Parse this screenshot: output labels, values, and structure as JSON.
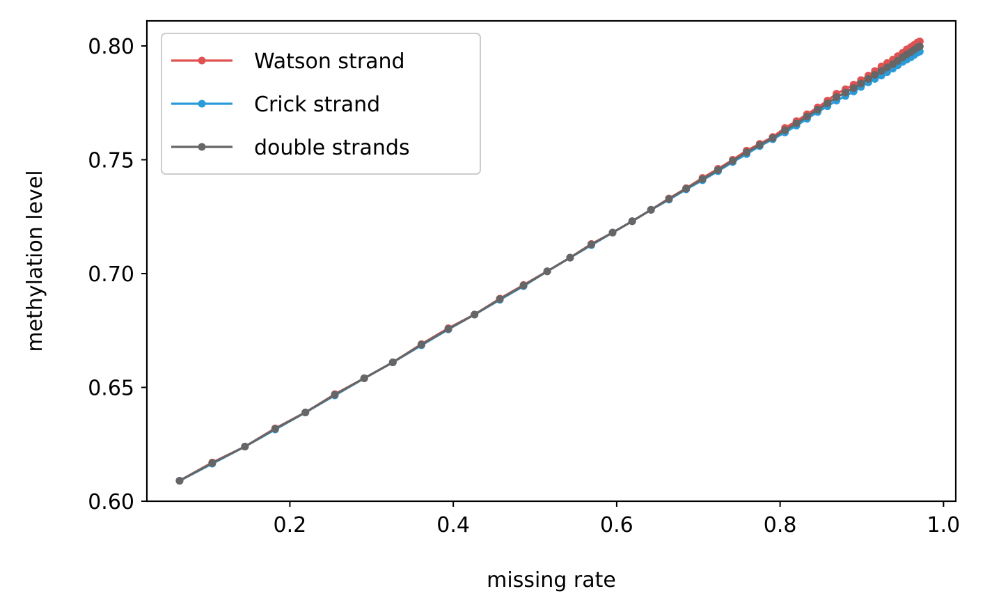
{
  "chart_data": {
    "type": "line",
    "xlabel": "missing rate",
    "ylabel": "methylation level",
    "xlim": [
      0.025,
      1.015
    ],
    "ylim": [
      0.6,
      0.811
    ],
    "xticks": [
      0.2,
      0.4,
      0.6,
      0.8,
      1.0
    ],
    "xtick_labels": [
      "0.2",
      "0.4",
      "0.6",
      "0.8",
      "1.0"
    ],
    "yticks": [
      0.6,
      0.65,
      0.7,
      0.75,
      0.8
    ],
    "ytick_labels": [
      "0.60",
      "0.65",
      "0.70",
      "0.75",
      "0.80"
    ],
    "grid": false,
    "legend_position": "top-left",
    "series": [
      {
        "name": "Watson strand",
        "color": "#e05252",
        "x": [
          0.065,
          0.105,
          0.145,
          0.182,
          0.219,
          0.255,
          0.291,
          0.326,
          0.361,
          0.394,
          0.426,
          0.457,
          0.486,
          0.515,
          0.543,
          0.569,
          0.595,
          0.619,
          0.642,
          0.664,
          0.685,
          0.705,
          0.724,
          0.742,
          0.759,
          0.775,
          0.791,
          0.806,
          0.82,
          0.833,
          0.846,
          0.858,
          0.869,
          0.88,
          0.89,
          0.899,
          0.908,
          0.916,
          0.924,
          0.931,
          0.938,
          0.944,
          0.95,
          0.955,
          0.96,
          0.964,
          0.968,
          0.971
        ],
        "y": [
          0.609,
          0.617,
          0.624,
          0.632,
          0.639,
          0.647,
          0.654,
          0.661,
          0.669,
          0.676,
          0.682,
          0.689,
          0.695,
          0.701,
          0.707,
          0.713,
          0.718,
          0.723,
          0.728,
          0.733,
          0.7375,
          0.742,
          0.746,
          0.75,
          0.754,
          0.757,
          0.76,
          0.764,
          0.767,
          0.77,
          0.773,
          0.776,
          0.779,
          0.781,
          0.783,
          0.785,
          0.787,
          0.789,
          0.791,
          0.7925,
          0.794,
          0.7955,
          0.797,
          0.7985,
          0.7995,
          0.8005,
          0.8015,
          0.802
        ]
      },
      {
        "name": "Crick strand",
        "color": "#2b9ad8",
        "x": [
          0.065,
          0.105,
          0.145,
          0.182,
          0.219,
          0.255,
          0.291,
          0.326,
          0.361,
          0.394,
          0.426,
          0.457,
          0.486,
          0.515,
          0.543,
          0.569,
          0.595,
          0.619,
          0.642,
          0.664,
          0.685,
          0.705,
          0.724,
          0.742,
          0.759,
          0.775,
          0.791,
          0.806,
          0.82,
          0.833,
          0.846,
          0.858,
          0.869,
          0.88,
          0.89,
          0.899,
          0.908,
          0.916,
          0.924,
          0.931,
          0.938,
          0.944,
          0.95,
          0.955,
          0.96,
          0.964,
          0.968,
          0.971
        ],
        "y": [
          0.609,
          0.6165,
          0.624,
          0.6315,
          0.639,
          0.6465,
          0.654,
          0.661,
          0.6685,
          0.6755,
          0.682,
          0.6885,
          0.6945,
          0.701,
          0.707,
          0.7125,
          0.718,
          0.723,
          0.728,
          0.7325,
          0.737,
          0.741,
          0.745,
          0.749,
          0.7525,
          0.756,
          0.759,
          0.762,
          0.765,
          0.768,
          0.771,
          0.7735,
          0.776,
          0.778,
          0.78,
          0.782,
          0.784,
          0.7855,
          0.787,
          0.7885,
          0.79,
          0.7915,
          0.793,
          0.794,
          0.795,
          0.796,
          0.797,
          0.7975
        ]
      },
      {
        "name": "double strands",
        "color": "#666666",
        "x": [
          0.065,
          0.105,
          0.145,
          0.182,
          0.219,
          0.255,
          0.291,
          0.326,
          0.361,
          0.394,
          0.426,
          0.457,
          0.486,
          0.515,
          0.543,
          0.569,
          0.595,
          0.619,
          0.642,
          0.664,
          0.685,
          0.705,
          0.724,
          0.742,
          0.759,
          0.775,
          0.791,
          0.806,
          0.82,
          0.833,
          0.846,
          0.858,
          0.869,
          0.88,
          0.89,
          0.899,
          0.908,
          0.916,
          0.924,
          0.931,
          0.938,
          0.944,
          0.95,
          0.955,
          0.96,
          0.964,
          0.968,
          0.971
        ],
        "y": [
          0.609,
          0.6168,
          0.624,
          0.6318,
          0.639,
          0.6468,
          0.654,
          0.661,
          0.6688,
          0.6757,
          0.682,
          0.6888,
          0.6948,
          0.701,
          0.707,
          0.7128,
          0.718,
          0.723,
          0.728,
          0.7328,
          0.7373,
          0.7415,
          0.7455,
          0.7495,
          0.7533,
          0.7565,
          0.7595,
          0.763,
          0.766,
          0.769,
          0.772,
          0.7748,
          0.7775,
          0.7795,
          0.7815,
          0.7835,
          0.7855,
          0.7873,
          0.789,
          0.7905,
          0.792,
          0.7935,
          0.795,
          0.7963,
          0.7973,
          0.7983,
          0.7993,
          0.7998
        ]
      }
    ]
  }
}
